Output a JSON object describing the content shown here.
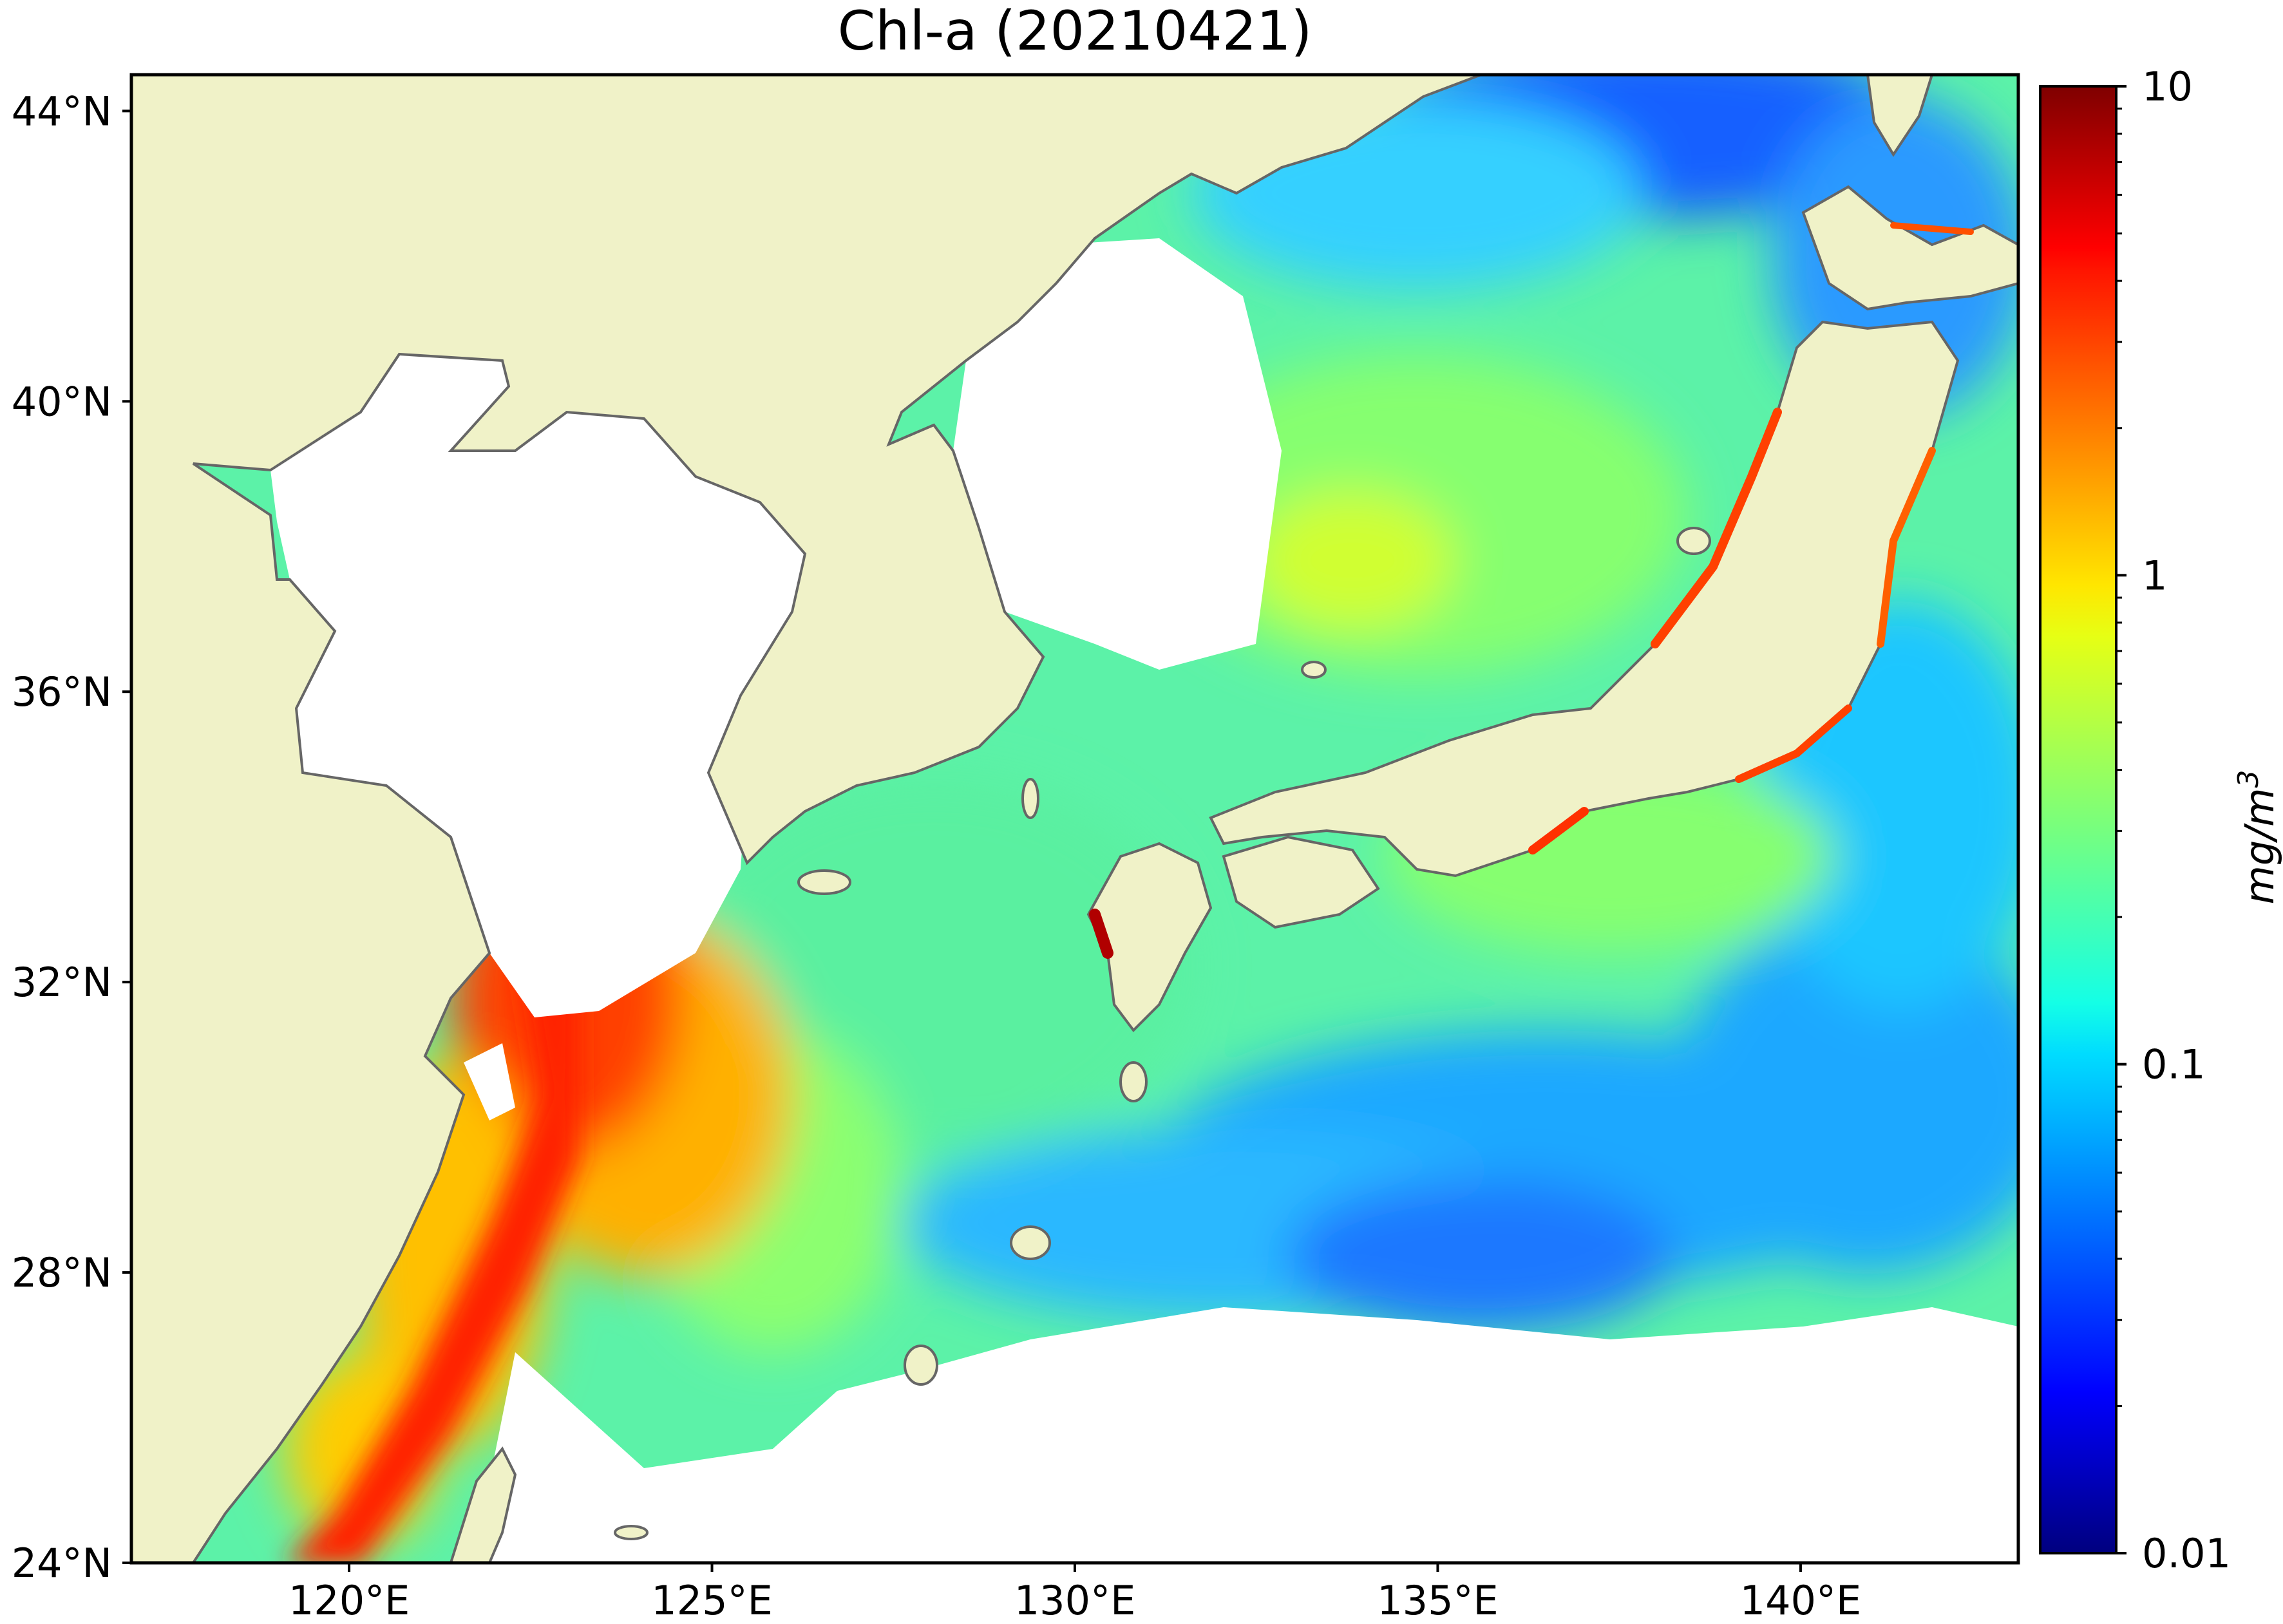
{
  "title": "Chl-a (20210421)",
  "map": {
    "lon_range": [
      117,
      143
    ],
    "lat_range": [
      24,
      44.5
    ],
    "land_color": "#f0f2c8",
    "nodata_color": "#ffffff",
    "coastline_color": "#666666"
  },
  "axes": {
    "x_ticks": [
      {
        "value": 120,
        "label": "120°E"
      },
      {
        "value": 125,
        "label": "125°E"
      },
      {
        "value": 130,
        "label": "130°E"
      },
      {
        "value": 135,
        "label": "135°E"
      },
      {
        "value": 140,
        "label": "140°E"
      }
    ],
    "y_ticks": [
      {
        "value": 24,
        "label": "24°N"
      },
      {
        "value": 28,
        "label": "28°N"
      },
      {
        "value": 32,
        "label": "32°N"
      },
      {
        "value": 36,
        "label": "36°N"
      },
      {
        "value": 40,
        "label": "40°N"
      },
      {
        "value": 44,
        "label": "44°N"
      }
    ]
  },
  "colorbar": {
    "scale": "log",
    "range": [
      0.01,
      10
    ],
    "label_base": "mg/m",
    "label_sup": "3",
    "colormap": "jet",
    "ticks": [
      {
        "value": 10,
        "label": "10"
      },
      {
        "value": 1,
        "label": "1"
      },
      {
        "value": 0.1,
        "label": "0.1"
      },
      {
        "value": 0.01,
        "label": "0.01"
      }
    ]
  }
}
